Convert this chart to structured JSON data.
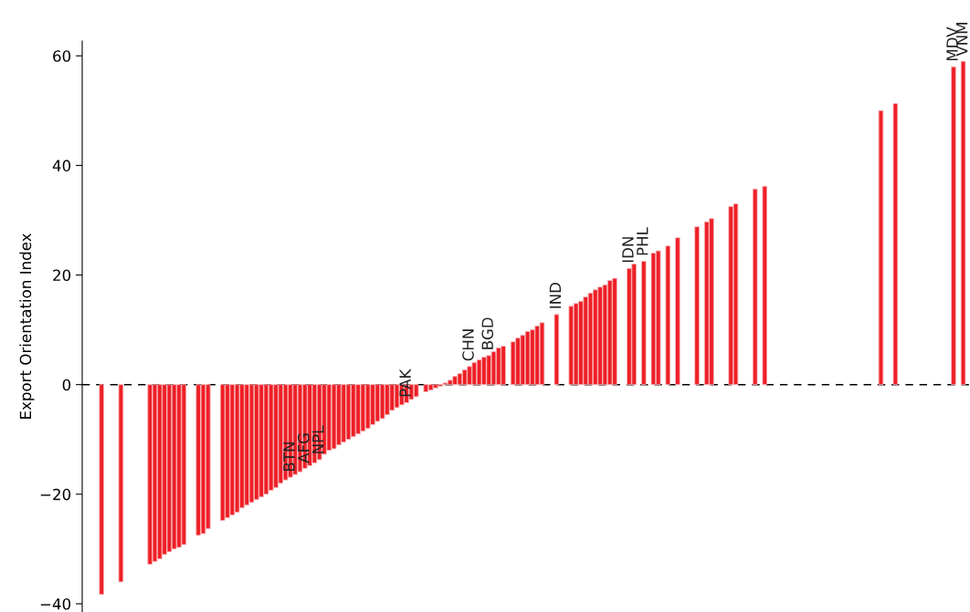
{
  "chart_data": {
    "type": "bar",
    "ylabel": "Export Orientation Index",
    "color": "#ee1f26",
    "categories": [
      null,
      null,
      null,
      null,
      null,
      null,
      null,
      null,
      null,
      null,
      null,
      null,
      null,
      null,
      null,
      null,
      null,
      null,
      null,
      null,
      null,
      null,
      null,
      null,
      null,
      null,
      null,
      null,
      null,
      null,
      null,
      null,
      null,
      null,
      null,
      null,
      null,
      null,
      null,
      "BTN",
      null,
      null,
      "AFG",
      null,
      null,
      "NPL",
      null,
      null,
      null,
      null,
      null,
      null,
      null,
      null,
      null,
      null,
      null,
      null,
      null,
      null,
      null,
      null,
      null,
      "PAK",
      null,
      null,
      null,
      null,
      null,
      null,
      null,
      null,
      null,
      null,
      null,
      null,
      "CHN",
      null,
      null,
      null,
      "BGD",
      null,
      null,
      null,
      null,
      null,
      null,
      null,
      null,
      null,
      null,
      null,
      null,
      null,
      "IND",
      null,
      null,
      null,
      null,
      null,
      null,
      null,
      null,
      null,
      null,
      null,
      null,
      null,
      null,
      "IDN",
      null,
      null,
      "PHL",
      null,
      null,
      null,
      null,
      null,
      null,
      null,
      null,
      null,
      null,
      null,
      null,
      null,
      null,
      null,
      null,
      null,
      null,
      null,
      null,
      null,
      null,
      null,
      null,
      null,
      null,
      null,
      null,
      null,
      null,
      null,
      null,
      null,
      null,
      null,
      null,
      null,
      null,
      null,
      null,
      null,
      null,
      null,
      null,
      null,
      null,
      null,
      null,
      null,
      null,
      null,
      null,
      null,
      null,
      null,
      null,
      null,
      null,
      null,
      null,
      null,
      null,
      null,
      "MDV",
      null,
      "VNM"
    ],
    "values": [
      -38.3,
      null,
      null,
      null,
      -36,
      null,
      null,
      null,
      null,
      null,
      -32.8,
      -32.3,
      -31.8,
      -31,
      -30.5,
      -30,
      -29.7,
      -29.2,
      null,
      null,
      -27.5,
      -27.2,
      -26.3,
      null,
      null,
      -24.8,
      -24.3,
      -23.8,
      -23.3,
      -22.5,
      -22,
      -21.5,
      -21,
      -20.5,
      -20,
      -19.3,
      -18.8,
      -18,
      -17.4,
      -16.9,
      -16.4,
      -15.9,
      -15.3,
      -14.8,
      -14.3,
      -13.7,
      -12.7,
      -12,
      -11.7,
      -11,
      -10.5,
      -10,
      -9.5,
      -9,
      -8.5,
      -8,
      -7.3,
      -6.7,
      -6.2,
      -5.5,
      -4.7,
      -4.2,
      -3.7,
      -3.3,
      -2.7,
      -2.2,
      null,
      -1.3,
      -1,
      -0.6,
      -0.3,
      0.3,
      0.8,
      1.5,
      2,
      2.7,
      3.3,
      4,
      4.5,
      5,
      5.3,
      6,
      6.7,
      7,
      null,
      7.8,
      8.5,
      9,
      9.7,
      10,
      10.7,
      11.3,
      null,
      null,
      12.8,
      null,
      null,
      14.3,
      14.8,
      15.2,
      16,
      16.7,
      17.3,
      17.8,
      18.2,
      19,
      19.4,
      null,
      null,
      21.2,
      22,
      null,
      22.5,
      null,
      24,
      24.4,
      null,
      25.3,
      null,
      26.8,
      null,
      null,
      null,
      28.8,
      null,
      29.7,
      30.3,
      null,
      null,
      null,
      32.5,
      33,
      null,
      null,
      null,
      35.7,
      null,
      36.2,
      null,
      null,
      null,
      null,
      null,
      null,
      null,
      null,
      null,
      null,
      null,
      null,
      null,
      null,
      null,
      null,
      null,
      null,
      null,
      null,
      null,
      null,
      null,
      50,
      null,
      null,
      51.3,
      null,
      null,
      null,
      null,
      null,
      null,
      null,
      null,
      null,
      null,
      null,
      58,
      null,
      59
    ],
    "ylim": [
      -41.5,
      62.7
    ],
    "yticks": [
      {
        "value": -40,
        "label": "−40"
      },
      {
        "value": -20,
        "label": "−20"
      },
      0,
      20,
      40,
      60
    ],
    "ref_lines": [
      {
        "axis": "y",
        "value": 0,
        "color": "#000000",
        "line_style": "dashed"
      }
    ],
    "grid": false,
    "legend": false
  }
}
